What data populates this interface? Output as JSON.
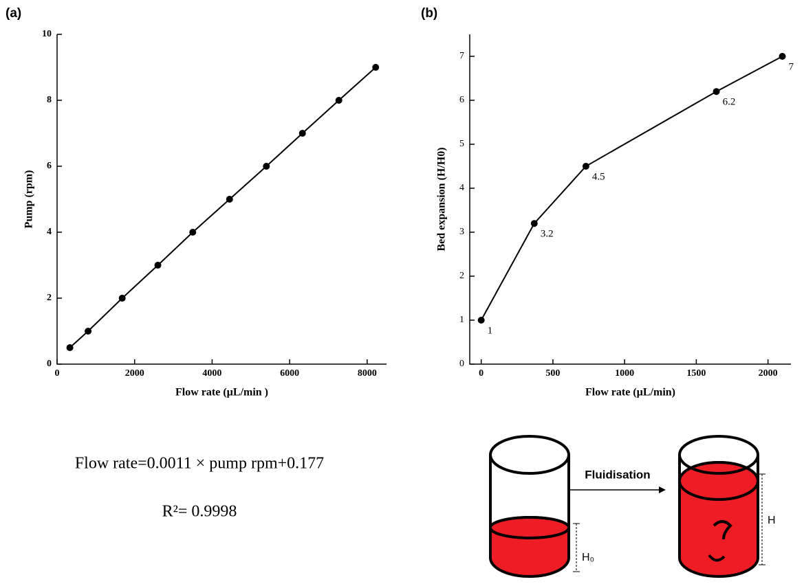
{
  "panel_labels": [
    "(a)",
    "(b)"
  ],
  "chart_data": [
    {
      "type": "line",
      "xlabel": "Flow rate (µL/min )",
      "ylabel": "Pump (rpm)",
      "x": [
        330,
        800,
        1680,
        2600,
        3500,
        4450,
        5400,
        6330,
        7270,
        8220
      ],
      "values": [
        0.5,
        1,
        2,
        3,
        4,
        5,
        6,
        7,
        8,
        9
      ],
      "color": "#000000",
      "xlim": [
        0,
        8500
      ],
      "xticks": [
        0,
        2000,
        4000,
        6000,
        8000
      ],
      "ylim": [
        0,
        10
      ],
      "yticks": [
        0,
        2,
        4,
        6,
        8,
        10
      ],
      "data_labels": false
    },
    {
      "type": "line",
      "xlabel": "Flow rate (µL/min)",
      "ylabel": "Bed expansion (H/H0)",
      "x": [
        0,
        370,
        730,
        1640,
        2100
      ],
      "values": [
        1,
        3.2,
        4.5,
        6.2,
        7
      ],
      "color": "#000000",
      "xlim": [
        -80,
        2160
      ],
      "xticks": [
        0,
        500,
        1000,
        1500,
        2000
      ],
      "ylim": [
        0,
        7.5
      ],
      "yticks": [
        0,
        1,
        2,
        3,
        4,
        5,
        6,
        7
      ],
      "data_labels": true
    }
  ],
  "equation": "Flow rate=0.0011 × pump rpm+0.177",
  "r_squared": "R²= 0.9998",
  "diagram": {
    "arrow_label": "Fluidisation",
    "height_label": "H",
    "initial_height_label": "H₀"
  }
}
